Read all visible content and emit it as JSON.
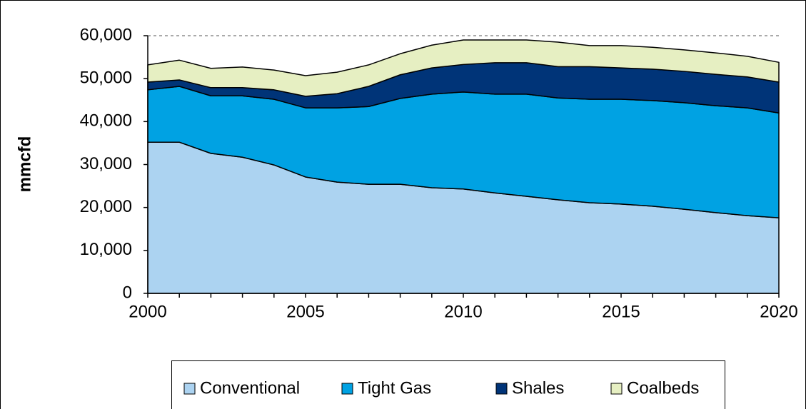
{
  "chart_data": {
    "type": "stacked_area",
    "y_label": "mmcfd",
    "x": [
      2000,
      2001,
      2002,
      2003,
      2004,
      2005,
      2006,
      2007,
      2008,
      2009,
      2010,
      2011,
      2012,
      2013,
      2014,
      2015,
      2016,
      2017,
      2018,
      2019,
      2020
    ],
    "series": [
      {
        "name": "Conventional",
        "color": "#acd3f1",
        "values": [
          35200,
          35200,
          32600,
          31700,
          29900,
          27100,
          25900,
          25400,
          25400,
          24600,
          24300,
          23400,
          22600,
          21800,
          21100,
          20800,
          20300,
          19600,
          18800,
          18100,
          17600
        ]
      },
      {
        "name": "Tight Gas",
        "color": "#00a2e3",
        "values": [
          12200,
          13000,
          13400,
          14300,
          15300,
          16100,
          17300,
          18100,
          20000,
          21800,
          22600,
          23000,
          23800,
          23700,
          24100,
          24400,
          24600,
          24800,
          24900,
          25100,
          24400
        ]
      },
      {
        "name": "Shales",
        "color": "#003478",
        "values": [
          1800,
          1500,
          1900,
          1900,
          2200,
          2700,
          3300,
          4700,
          5500,
          6100,
          6400,
          7300,
          7300,
          7300,
          7600,
          7300,
          7300,
          7300,
          7300,
          7200,
          7200
        ]
      },
      {
        "name": "Coalbeds",
        "color": "#e6efc2",
        "values": [
          4000,
          4600,
          4500,
          4800,
          4600,
          4800,
          5000,
          5000,
          4900,
          5300,
          5700,
          5300,
          5300,
          5700,
          4900,
          5200,
          5100,
          5000,
          5000,
          4800,
          4600
        ]
      }
    ],
    "xlim": [
      2000,
      2020
    ],
    "xticks": [
      2000,
      2005,
      2010,
      2015,
      2020
    ],
    "ylim": [
      0,
      60000
    ],
    "yticks": [
      0,
      {
        "value": 10000,
        "label": "10,000"
      },
      {
        "value": 20000,
        "label": "20,000"
      },
      {
        "value": 30000,
        "label": "30,000"
      },
      {
        "value": 40000,
        "label": "40,000"
      },
      {
        "value": 50000,
        "label": "50,000"
      },
      {
        "value": 60000,
        "label": "60,000"
      }
    ],
    "legend": "bottom"
  }
}
